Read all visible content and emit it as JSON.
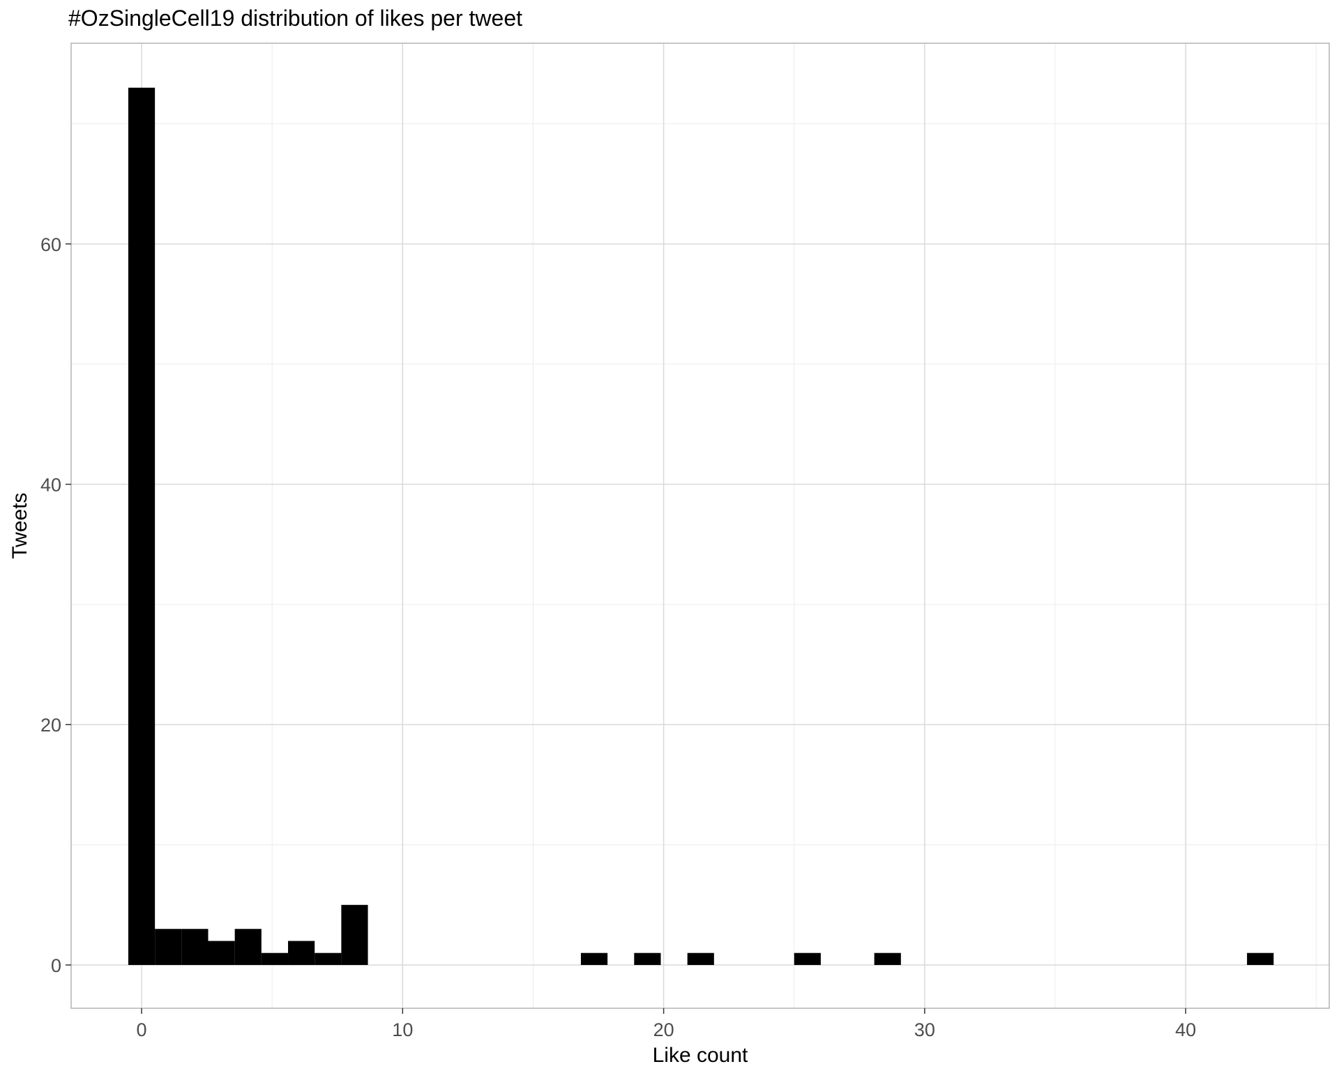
{
  "chart_data": {
    "type": "bar",
    "title": "#OzSingleCell19 distribution of likes per tweet",
    "xlabel": "Like count",
    "ylabel": "Tweets",
    "bin_width": 1.02,
    "bins": [
      {
        "start": -0.51,
        "count": 73
      },
      {
        "start": 0.51,
        "count": 3
      },
      {
        "start": 1.53,
        "count": 3
      },
      {
        "start": 2.55,
        "count": 2
      },
      {
        "start": 3.57,
        "count": 3
      },
      {
        "start": 4.59,
        "count": 1
      },
      {
        "start": 5.61,
        "count": 2
      },
      {
        "start": 6.63,
        "count": 1
      },
      {
        "start": 7.65,
        "count": 5
      },
      {
        "start": 16.83,
        "count": 1
      },
      {
        "start": 18.87,
        "count": 1
      },
      {
        "start": 20.91,
        "count": 1
      },
      {
        "start": 25.0,
        "count": 1
      },
      {
        "start": 28.07,
        "count": 1
      },
      {
        "start": 42.35,
        "count": 1
      }
    ],
    "xlim": [
      -2.7,
      45.5
    ],
    "ylim": [
      -3.6,
      76.7
    ],
    "x_major_ticks": [
      0,
      10,
      20,
      30,
      40
    ],
    "x_minor_ticks": [
      5,
      15,
      25,
      35,
      45
    ],
    "y_major_ticks": [
      0,
      20,
      40,
      60
    ],
    "y_minor_ticks": [
      10,
      30,
      50,
      70
    ],
    "grid": true,
    "bar_color": "#000000",
    "grid_color": "#d9d9d9",
    "minor_grid_color": "#ececec",
    "panel_border_color": "#b3b3b3"
  }
}
